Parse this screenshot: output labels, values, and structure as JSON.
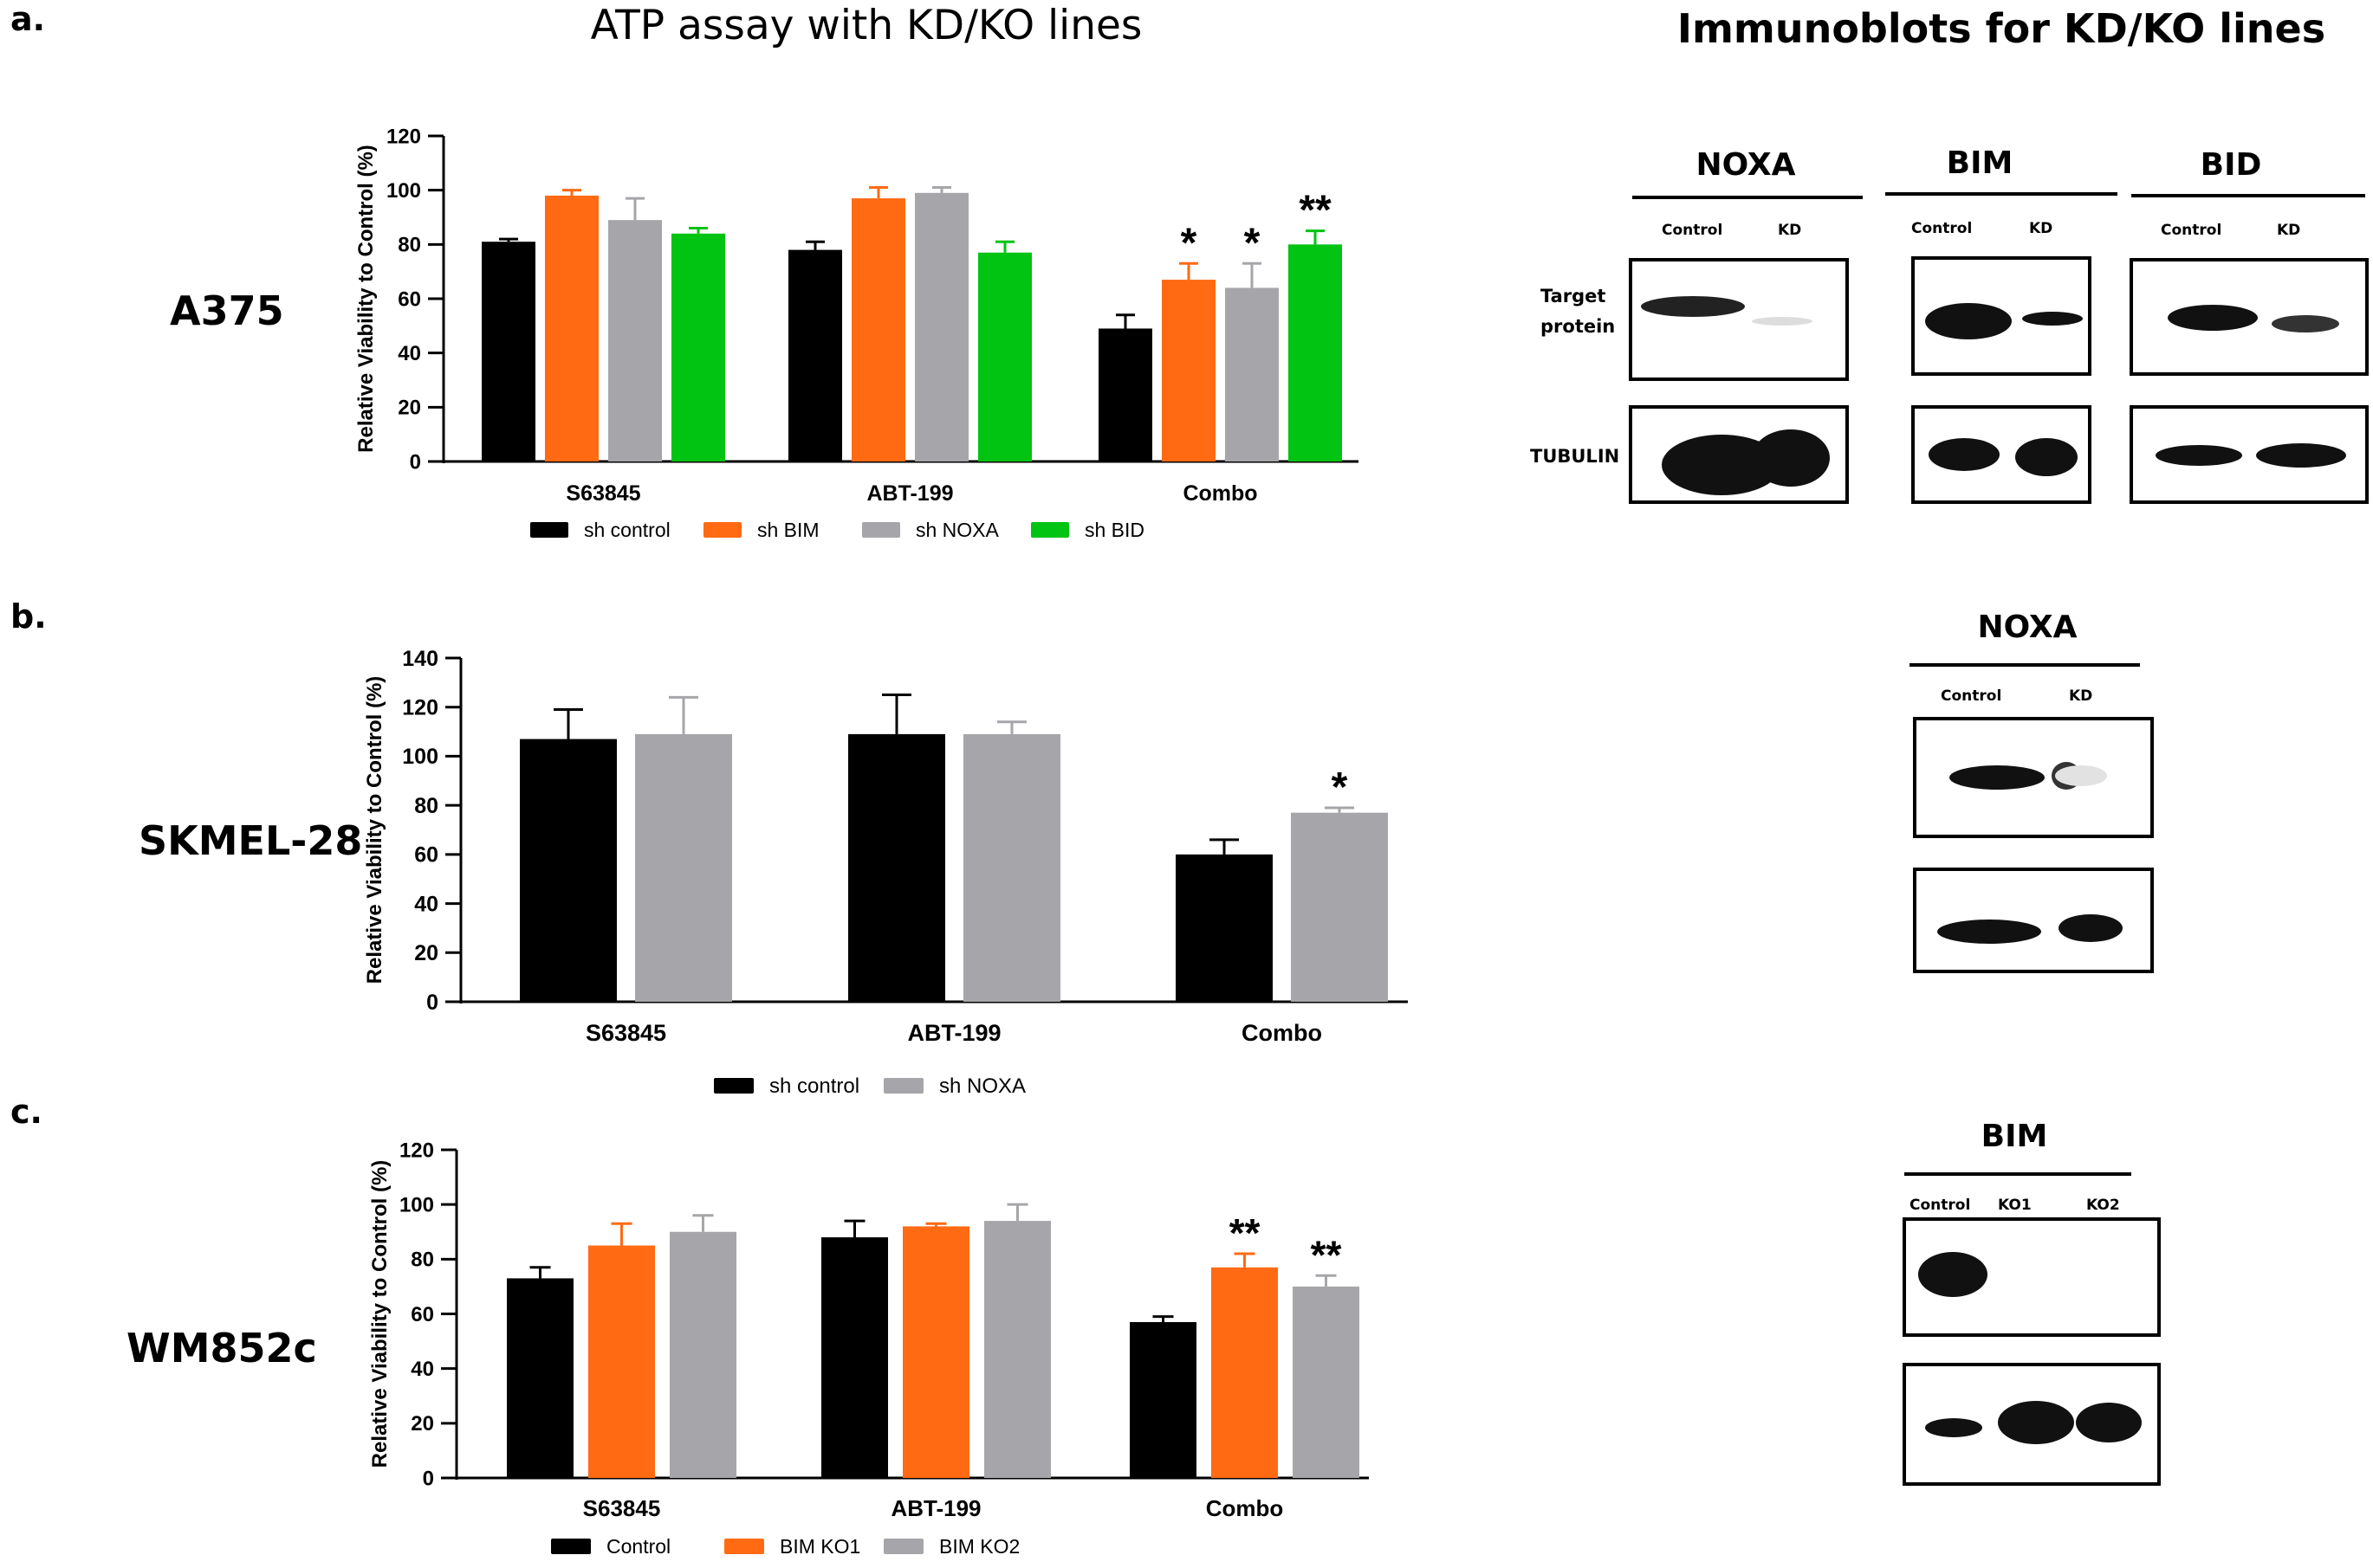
{
  "headings": {
    "atp": "ATP assay with KD/KO lines",
    "immuno": "Immunoblots for KD/KO lines"
  },
  "panels": {
    "a": "a.",
    "b": "b.",
    "c": "c."
  },
  "cell_lines": {
    "a": "A375",
    "b": "SKMEL-28",
    "c": "WM852c"
  },
  "chart_data": [
    {
      "type": "bar",
      "panel": "a",
      "ylabel": "Relative Viability to Control (%)",
      "xlabel": "",
      "ylim": [
        0,
        120
      ],
      "yticks": [
        "0",
        "20",
        "40",
        "60",
        "80",
        "100",
        "120"
      ],
      "categories": [
        "S63845",
        "ABT-199",
        "Combo"
      ],
      "series": [
        {
          "name": "sh control",
          "color": "#000000",
          "values": [
            81,
            78,
            49
          ],
          "errors": [
            1,
            3,
            5
          ]
        },
        {
          "name": "sh BIM",
          "color": "#ff6a13",
          "values": [
            98,
            97,
            67
          ],
          "errors": [
            2,
            4,
            6
          ]
        },
        {
          "name": "sh NOXA",
          "color": "#a6a6aa",
          "values": [
            89,
            99,
            64
          ],
          "errors": [
            8,
            2,
            9
          ]
        },
        {
          "name": "sh BID",
          "color": "#00c312",
          "values": [
            84,
            77,
            80
          ],
          "errors": [
            2,
            4,
            5
          ]
        }
      ],
      "annotations": [
        {
          "category": "Combo",
          "series": "sh BIM",
          "text": "*"
        },
        {
          "category": "Combo",
          "series": "sh NOXA",
          "text": "*"
        },
        {
          "category": "Combo",
          "series": "sh BID",
          "text": "**"
        }
      ],
      "legend": "bottom"
    },
    {
      "type": "bar",
      "panel": "b",
      "ylabel": "Relative Viability to Control (%)",
      "xlabel": "",
      "ylim": [
        0,
        140
      ],
      "yticks": [
        "0",
        "20",
        "40",
        "60",
        "80",
        "100",
        "120",
        "140"
      ],
      "categories": [
        "S63845",
        "ABT-199",
        "Combo"
      ],
      "series": [
        {
          "name": "sh control",
          "color": "#000000",
          "values": [
            107,
            109,
            60
          ],
          "errors": [
            12,
            16,
            6
          ]
        },
        {
          "name": "sh NOXA",
          "color": "#a6a6aa",
          "values": [
            109,
            109,
            77
          ],
          "errors": [
            15,
            5,
            2
          ]
        }
      ],
      "annotations": [
        {
          "category": "Combo",
          "series": "sh NOXA",
          "text": "*"
        }
      ],
      "legend": "bottom"
    },
    {
      "type": "bar",
      "panel": "c",
      "ylabel": "Relative Viability to Control (%)",
      "xlabel": "",
      "ylim": [
        0,
        120
      ],
      "yticks": [
        "0",
        "20",
        "40",
        "60",
        "80",
        "100",
        "120"
      ],
      "categories": [
        "S63845",
        "ABT-199",
        "Combo"
      ],
      "series": [
        {
          "name": "Control",
          "color": "#000000",
          "values": [
            73,
            88,
            57
          ],
          "errors": [
            4,
            6,
            2
          ]
        },
        {
          "name": "BIM KO1",
          "color": "#ff6a13",
          "values": [
            85,
            92,
            77
          ],
          "errors": [
            8,
            1,
            5
          ]
        },
        {
          "name": "BIM KO2",
          "color": "#a6a6aa",
          "values": [
            90,
            94,
            70
          ],
          "errors": [
            6,
            6,
            4
          ]
        }
      ],
      "annotations": [
        {
          "category": "Combo",
          "series": "BIM KO1",
          "text": "**"
        },
        {
          "category": "Combo",
          "series": "BIM KO2",
          "text": "**"
        }
      ],
      "legend": "bottom"
    }
  ],
  "blots": {
    "a": {
      "row_labels": {
        "target_line1": "Target",
        "target_line2": "protein",
        "tubulin": "TUBULIN"
      },
      "groups": [
        {
          "title": "NOXA",
          "columns": [
            "Control",
            "KD"
          ]
        },
        {
          "title": "BIM",
          "columns": [
            "Control",
            "KD"
          ]
        },
        {
          "title": "BID",
          "columns": [
            "Control",
            "KD"
          ]
        }
      ]
    },
    "b": {
      "title": "NOXA",
      "columns": [
        "Control",
        "KD"
      ]
    },
    "c": {
      "title": "BIM",
      "columns": [
        "Control",
        "KO1",
        "KO2"
      ]
    }
  }
}
